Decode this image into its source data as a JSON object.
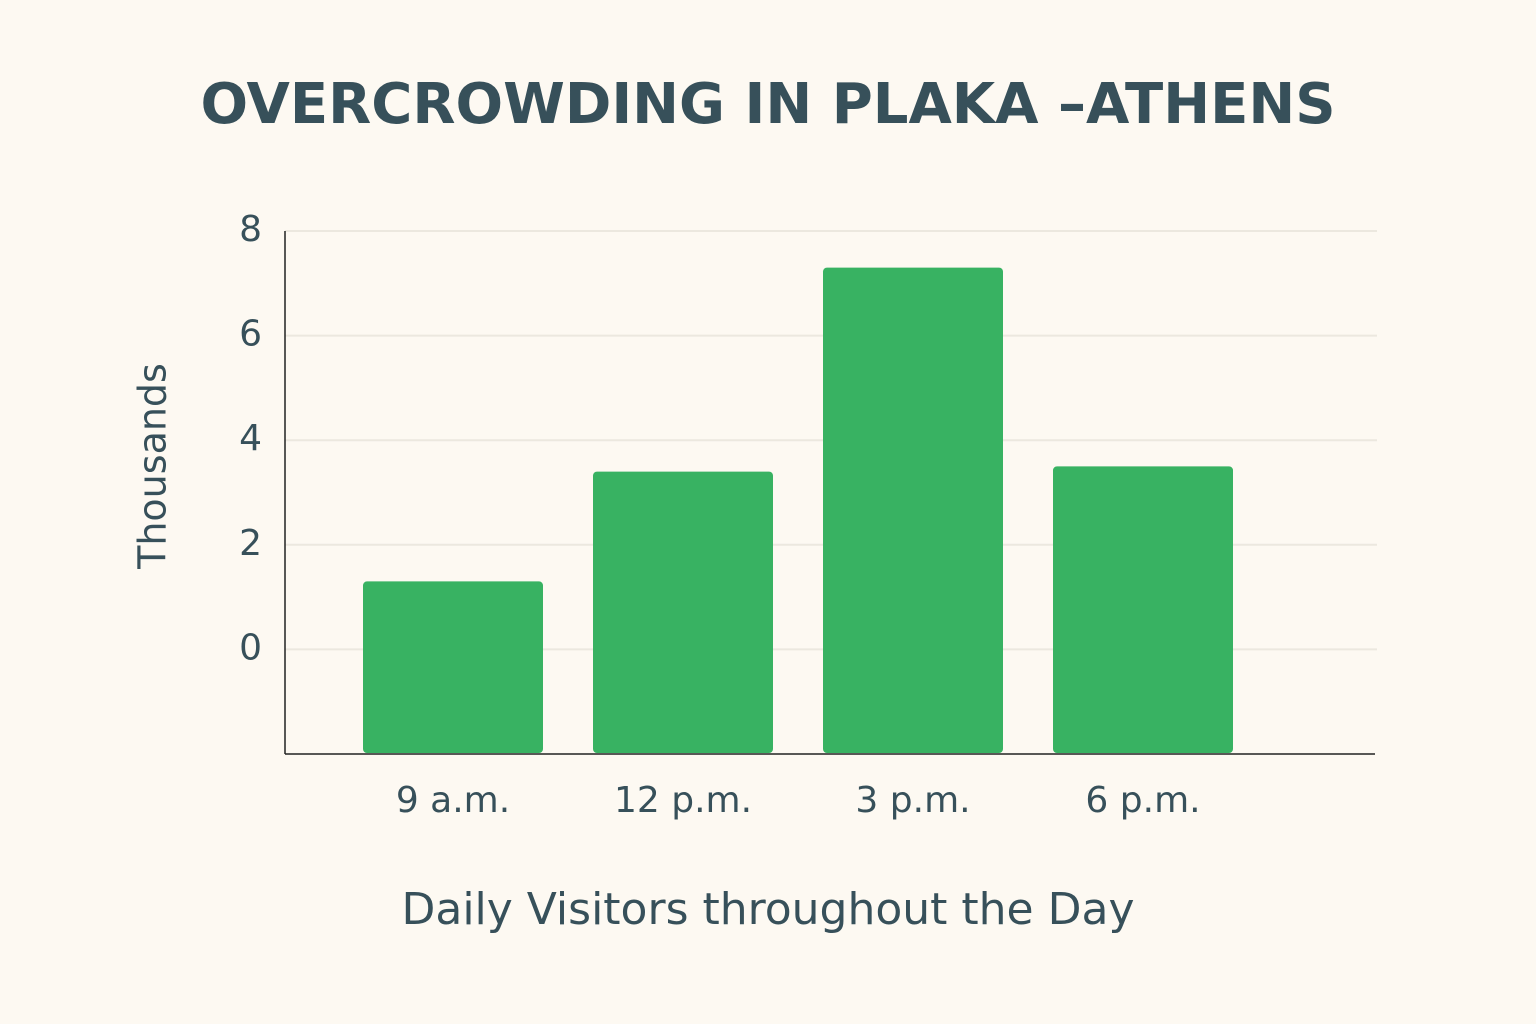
{
  "chart_data": {
    "type": "bar",
    "title": "OVERCROWDING IN PLAKA –ATHENS",
    "x_label": "Daily Visitors throughout the Day",
    "y_label": "Thousands",
    "categories": [
      "9 a.m.",
      "12 p.m.",
      "3 p.m.",
      "6 p.m."
    ],
    "values": [
      1.3,
      3.4,
      7.3,
      3.5
    ],
    "color": "#38b262",
    "ylim": [
      -2,
      8
    ],
    "yticks": [
      0,
      2,
      4,
      6,
      8
    ],
    "grid": true
  }
}
